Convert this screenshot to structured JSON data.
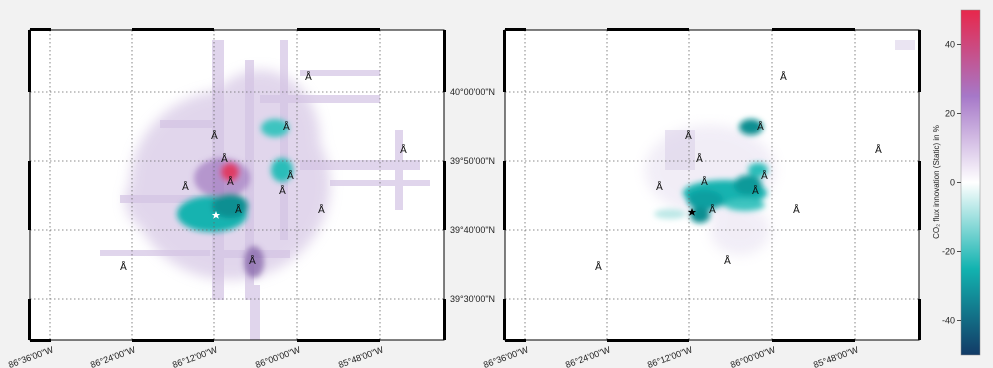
{
  "left_map": {
    "lon_labels": [
      "86°36'00\"W",
      "86°24'00\"W",
      "86°12'00\"W",
      "86°00'00\"W",
      "85°48'00\"W"
    ],
    "lat_labels": [
      "40°00'00\"N",
      "39°50'00\"N",
      "39°40'00\"N",
      "39°30'00\"N"
    ]
  },
  "right_map": {
    "lon_labels": [
      "86°36'00\"W",
      "86°24'00\"W",
      "86°12'00\"W",
      "86°00'00\"W",
      "85°48'00\"W"
    ]
  },
  "station_marker_symbol": "Å",
  "colorbar": {
    "title": "CO₂ flux innovation (Static) in %",
    "ticks": [
      "40",
      "20",
      "0",
      "-20",
      "-40"
    ],
    "tick_values": [
      40,
      20,
      0,
      -20,
      -40
    ],
    "range": [
      -50,
      50
    ],
    "colors": {
      "top": "#e8274b",
      "upper": "#a678c8",
      "mid": "#ffffff",
      "lower": "#12b3b0",
      "bottom": "#123a66"
    }
  }
}
